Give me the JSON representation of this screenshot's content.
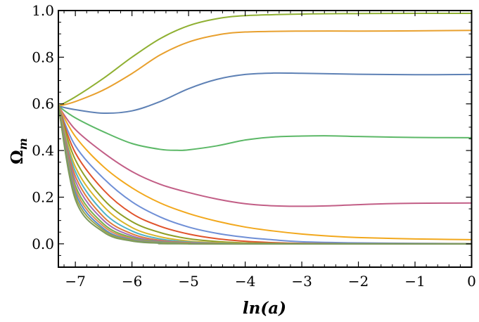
{
  "chart_data": {
    "type": "line",
    "xlabel": "ln(a)",
    "ylabel": "Ω_m",
    "xlim": [
      -7.3,
      0
    ],
    "ylim": [
      -0.1,
      1.0
    ],
    "x_ticks": [
      -7,
      -6,
      -5,
      -4,
      -3,
      -2,
      -1,
      0
    ],
    "x_tick_labels": [
      "−7",
      "−6",
      "−5",
      "−4",
      "−3",
      "−2",
      "−1",
      "0"
    ],
    "y_ticks": [
      0.0,
      0.2,
      0.4,
      0.6,
      0.8,
      1.0
    ],
    "y_tick_labels": [
      "0.0",
      "0.2",
      "0.4",
      "0.6",
      "0.8",
      "1.0"
    ],
    "grid": false,
    "frame": "box",
    "series": [
      {
        "color": "#8fb032",
        "points": [
          [
            -7.3,
            0.59
          ],
          [
            -7,
            0.63
          ],
          [
            -6.5,
            0.71
          ],
          [
            -6,
            0.8
          ],
          [
            -5.5,
            0.88
          ],
          [
            -5,
            0.935
          ],
          [
            -4.5,
            0.965
          ],
          [
            -4,
            0.978
          ],
          [
            -3,
            0.985
          ],
          [
            -2,
            0.987
          ],
          [
            -1,
            0.988
          ],
          [
            0,
            0.988
          ]
        ]
      },
      {
        "color": "#e8a02e",
        "points": [
          [
            -7.3,
            0.59
          ],
          [
            -7,
            0.61
          ],
          [
            -6.5,
            0.66
          ],
          [
            -6,
            0.73
          ],
          [
            -5.5,
            0.81
          ],
          [
            -5,
            0.865
          ],
          [
            -4.5,
            0.895
          ],
          [
            -4,
            0.908
          ],
          [
            -3,
            0.912
          ],
          [
            -2,
            0.912
          ],
          [
            -1,
            0.913
          ],
          [
            0,
            0.915
          ]
        ]
      },
      {
        "color": "#5e81b5",
        "points": [
          [
            -7.3,
            0.59
          ],
          [
            -7,
            0.575
          ],
          [
            -6.5,
            0.56
          ],
          [
            -6,
            0.57
          ],
          [
            -5.5,
            0.61
          ],
          [
            -5,
            0.665
          ],
          [
            -4.5,
            0.705
          ],
          [
            -4,
            0.726
          ],
          [
            -3.5,
            0.732
          ],
          [
            -3,
            0.731
          ],
          [
            -2,
            0.727
          ],
          [
            -1,
            0.725
          ],
          [
            0,
            0.726
          ]
        ]
      },
      {
        "color": "#5cb867",
        "points": [
          [
            -7.3,
            0.59
          ],
          [
            -7,
            0.54
          ],
          [
            -6.5,
            0.48
          ],
          [
            -6,
            0.43
          ],
          [
            -5.5,
            0.405
          ],
          [
            -5.2,
            0.401
          ],
          [
            -5,
            0.403
          ],
          [
            -4.5,
            0.42
          ],
          [
            -4,
            0.445
          ],
          [
            -3.5,
            0.458
          ],
          [
            -3,
            0.462
          ],
          [
            -2.5,
            0.463
          ],
          [
            -2,
            0.46
          ],
          [
            -1,
            0.456
          ],
          [
            0,
            0.455
          ]
        ]
      },
      {
        "color": "#c25e86",
        "points": [
          [
            -7.3,
            0.59
          ],
          [
            -7,
            0.49
          ],
          [
            -6.5,
            0.39
          ],
          [
            -6,
            0.31
          ],
          [
            -5.5,
            0.255
          ],
          [
            -5,
            0.22
          ],
          [
            -4.5,
            0.192
          ],
          [
            -4,
            0.172
          ],
          [
            -3.5,
            0.163
          ],
          [
            -3,
            0.161
          ],
          [
            -2.5,
            0.163
          ],
          [
            -2,
            0.168
          ],
          [
            -1.5,
            0.172
          ],
          [
            -1,
            0.174
          ],
          [
            0,
            0.175
          ]
        ]
      },
      {
        "color": "#f2a81d",
        "points": [
          [
            -7.3,
            0.59
          ],
          [
            -7,
            0.46
          ],
          [
            -6.5,
            0.33
          ],
          [
            -6,
            0.24
          ],
          [
            -5.5,
            0.175
          ],
          [
            -5,
            0.13
          ],
          [
            -4.5,
            0.097
          ],
          [
            -4,
            0.072
          ],
          [
            -3.5,
            0.055
          ],
          [
            -3,
            0.042
          ],
          [
            -2.5,
            0.033
          ],
          [
            -2,
            0.027
          ],
          [
            -1,
            0.021
          ],
          [
            0,
            0.018
          ]
        ]
      },
      {
        "color": "#6f8fd6",
        "points": [
          [
            -7.3,
            0.59
          ],
          [
            -7,
            0.42
          ],
          [
            -6.5,
            0.28
          ],
          [
            -6,
            0.18
          ],
          [
            -5.5,
            0.115
          ],
          [
            -5,
            0.072
          ],
          [
            -4.5,
            0.045
          ],
          [
            -4,
            0.028
          ],
          [
            -3.5,
            0.017
          ],
          [
            -3,
            0.009
          ],
          [
            -2,
            0.004
          ],
          [
            -1,
            0.002
          ],
          [
            0,
            0.001
          ]
        ]
      },
      {
        "color": "#e0532c",
        "points": [
          [
            -7.3,
            0.59
          ],
          [
            -7,
            0.39
          ],
          [
            -6.5,
            0.23
          ],
          [
            -6,
            0.13
          ],
          [
            -5.5,
            0.075
          ],
          [
            -5,
            0.042
          ],
          [
            -4.5,
            0.022
          ],
          [
            -4,
            0.011
          ],
          [
            -3.5,
            0.005
          ],
          [
            -3,
            0.002
          ],
          [
            -2,
            0.0005
          ],
          [
            0,
            0.0
          ]
        ]
      },
      {
        "color": "#8f9e26",
        "points": [
          [
            -7.3,
            0.59
          ],
          [
            -7,
            0.36
          ],
          [
            -6.5,
            0.19
          ],
          [
            -6,
            0.095
          ],
          [
            -5.5,
            0.048
          ],
          [
            -5,
            0.022
          ],
          [
            -4.5,
            0.01
          ],
          [
            -4,
            0.004
          ],
          [
            -3,
            0.001
          ],
          [
            -2,
            0.0
          ],
          [
            0,
            0.0
          ]
        ]
      },
      {
        "color": "#d9b42a",
        "points": [
          [
            -7.3,
            0.59
          ],
          [
            -7,
            0.33
          ],
          [
            -6.5,
            0.16
          ],
          [
            -6,
            0.07
          ],
          [
            -5.5,
            0.03
          ],
          [
            -5,
            0.012
          ],
          [
            -4.5,
            0.005
          ],
          [
            -4,
            0.002
          ],
          [
            -3,
            0.0
          ],
          [
            0,
            0.0
          ]
        ]
      },
      {
        "color": "#4db3c9",
        "points": [
          [
            -7.3,
            0.59
          ],
          [
            -7,
            0.31
          ],
          [
            -6.5,
            0.135
          ],
          [
            -6,
            0.055
          ],
          [
            -5.5,
            0.021
          ],
          [
            -5,
            0.008
          ],
          [
            -4.5,
            0.003
          ],
          [
            -4,
            0.001
          ],
          [
            -3,
            0.0
          ],
          [
            0,
            0.0
          ]
        ]
      },
      {
        "color": "#e07a3a",
        "points": [
          [
            -7.3,
            0.59
          ],
          [
            -7,
            0.29
          ],
          [
            -6.5,
            0.115
          ],
          [
            -6,
            0.043
          ],
          [
            -5.5,
            0.015
          ],
          [
            -5,
            0.005
          ],
          [
            -4.5,
            0.002
          ],
          [
            -4,
            0.0
          ],
          [
            0,
            0.0
          ]
        ]
      },
      {
        "color": "#a16db5",
        "points": [
          [
            -7.3,
            0.59
          ],
          [
            -7,
            0.27
          ],
          [
            -6.5,
            0.1
          ],
          [
            -6,
            0.034
          ],
          [
            -5.5,
            0.011
          ],
          [
            -5,
            0.0035
          ],
          [
            -4.5,
            0.001
          ],
          [
            -4,
            0.0
          ],
          [
            0,
            0.0
          ]
        ]
      },
      {
        "color": "#78b04a",
        "points": [
          [
            -7.3,
            0.59
          ],
          [
            -7,
            0.25
          ],
          [
            -6.5,
            0.085
          ],
          [
            -6,
            0.027
          ],
          [
            -5.5,
            0.008
          ],
          [
            -5,
            0.0025
          ],
          [
            -4.5,
            0.0
          ],
          [
            0,
            0.0
          ]
        ]
      },
      {
        "color": "#d98b57",
        "points": [
          [
            -7.3,
            0.59
          ],
          [
            -7,
            0.235
          ],
          [
            -6.5,
            0.075
          ],
          [
            -6,
            0.022
          ],
          [
            -5.5,
            0.006
          ],
          [
            -5,
            0.0015
          ],
          [
            -4.5,
            0.0
          ],
          [
            0,
            0.0
          ]
        ]
      },
      {
        "color": "#5a8ac9",
        "points": [
          [
            -7.3,
            0.59
          ],
          [
            -7,
            0.22
          ],
          [
            -6.5,
            0.065
          ],
          [
            -6,
            0.018
          ],
          [
            -5.5,
            0.005
          ],
          [
            -5,
            0.001
          ],
          [
            -4.5,
            0.0
          ],
          [
            0,
            0.0
          ]
        ]
      },
      {
        "color": "#9aa34a",
        "points": [
          [
            -7.3,
            0.59
          ],
          [
            -7,
            0.205
          ],
          [
            -6.5,
            0.058
          ],
          [
            -6,
            0.015
          ],
          [
            -5.5,
            0.004
          ],
          [
            -5,
            0.001
          ],
          [
            -4.5,
            0.0
          ],
          [
            0,
            0.0
          ]
        ]
      },
      {
        "color": "#7d9a5e",
        "points": [
          [
            -7.3,
            0.59
          ],
          [
            -7,
            0.19
          ],
          [
            -6.5,
            0.05
          ],
          [
            -6,
            0.012
          ],
          [
            -5.5,
            0.003
          ],
          [
            -5,
            0.0
          ],
          [
            0,
            0.0
          ]
        ]
      }
    ]
  }
}
